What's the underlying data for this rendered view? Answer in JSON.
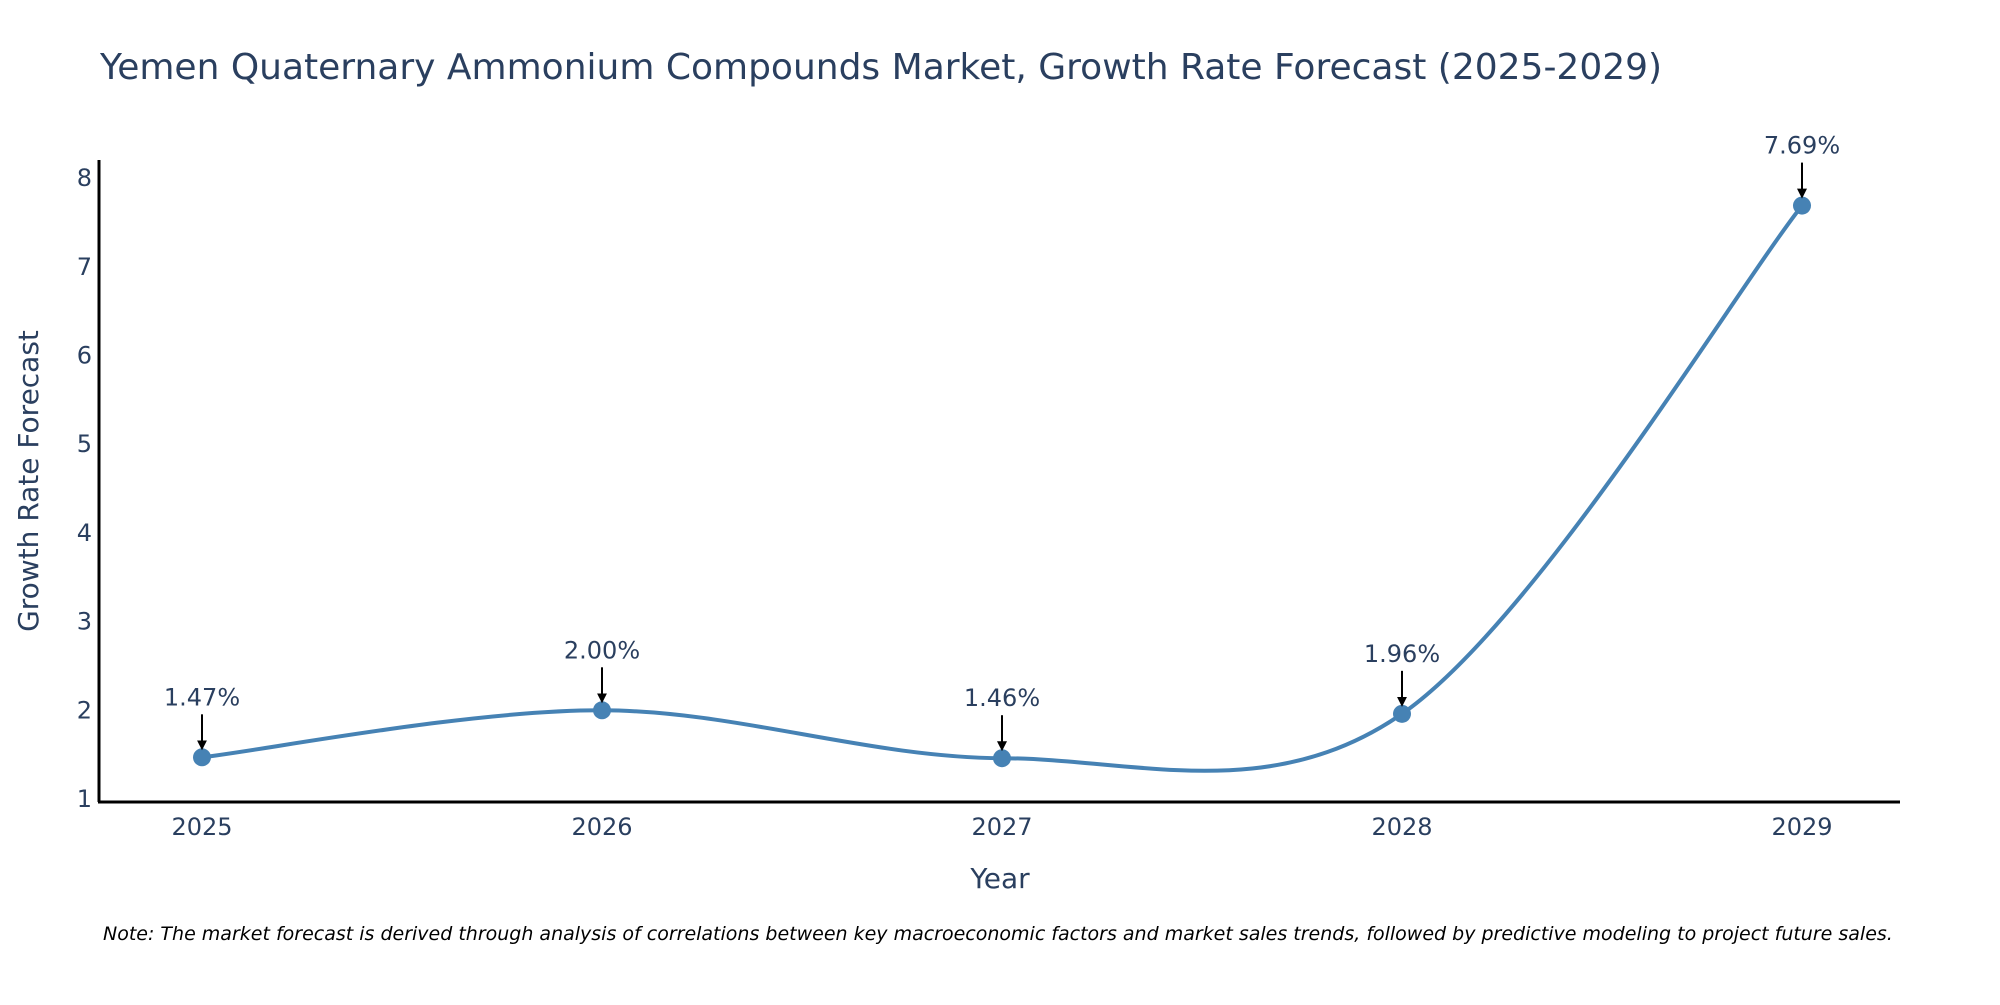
{
  "chart_data": {
    "type": "line",
    "title": "Yemen Quaternary Ammonium Compounds Market, Growth Rate Forecast (2025-2029)",
    "xlabel": "Year",
    "ylabel": "Growth Rate Forecast",
    "categories": [
      "2025",
      "2026",
      "2027",
      "2028",
      "2029"
    ],
    "values": [
      1.47,
      2.0,
      1.46,
      1.96,
      7.69
    ],
    "data_labels": [
      "1.47%",
      "2.00%",
      "1.46%",
      "1.96%",
      "7.69%"
    ],
    "yticks": [
      1,
      2,
      3,
      4,
      5,
      6,
      7,
      8
    ],
    "ylim": [
      1,
      8.2
    ],
    "grid": false,
    "line_color": "#4682b4",
    "note": "Note: The market forecast is derived through analysis of correlations between key macroeconomic factors and market sales trends, followed by predictive modeling to project future sales."
  }
}
